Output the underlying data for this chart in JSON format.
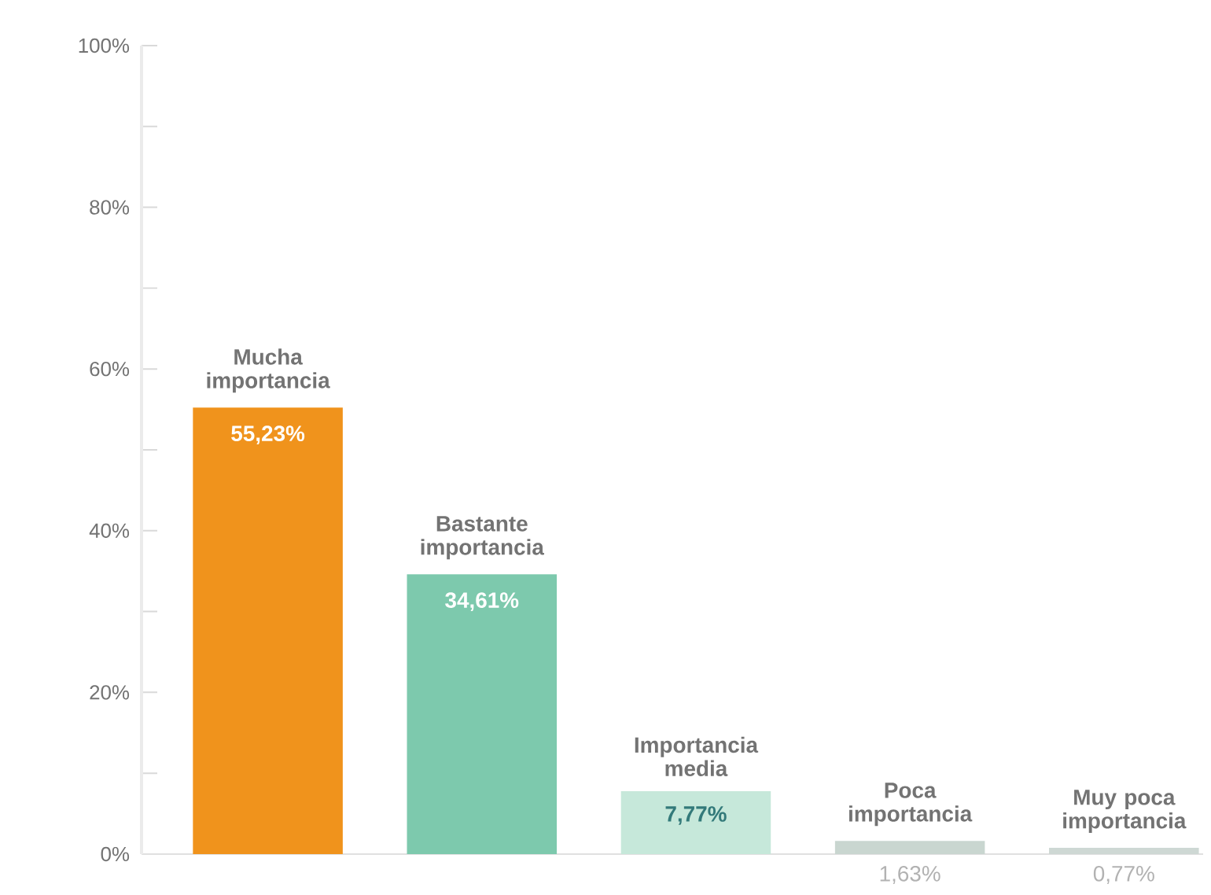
{
  "chart_data": {
    "type": "bar",
    "categories": [
      "Mucha importancia",
      "Bastante importancia",
      "Importancia media",
      "Poca importancia",
      "Muy poca importancia"
    ],
    "values": [
      55.23,
      34.61,
      7.77,
      1.63,
      0.77
    ],
    "value_labels": [
      "55,23%",
      "34,61%",
      "7,77%",
      "1,63%",
      "0,77%"
    ],
    "colors": [
      "#f0931c",
      "#7dc9ad",
      "#c6e8da",
      "#c9d6d0",
      "#ced8d4"
    ],
    "ylim": [
      0,
      100
    ],
    "yticks": [
      {
        "value": 0,
        "label": "0%"
      },
      {
        "value": 10,
        "label": null
      },
      {
        "value": 20,
        "label": "20%"
      },
      {
        "value": 30,
        "label": null
      },
      {
        "value": 40,
        "label": "40%"
      },
      {
        "value": 50,
        "label": null
      },
      {
        "value": 60,
        "label": "60%"
      },
      {
        "value": 70,
        "label": null
      },
      {
        "value": 80,
        "label": "80%"
      },
      {
        "value": 90,
        "label": null
      },
      {
        "value": 100,
        "label": "100%"
      }
    ],
    "grid": false
  }
}
